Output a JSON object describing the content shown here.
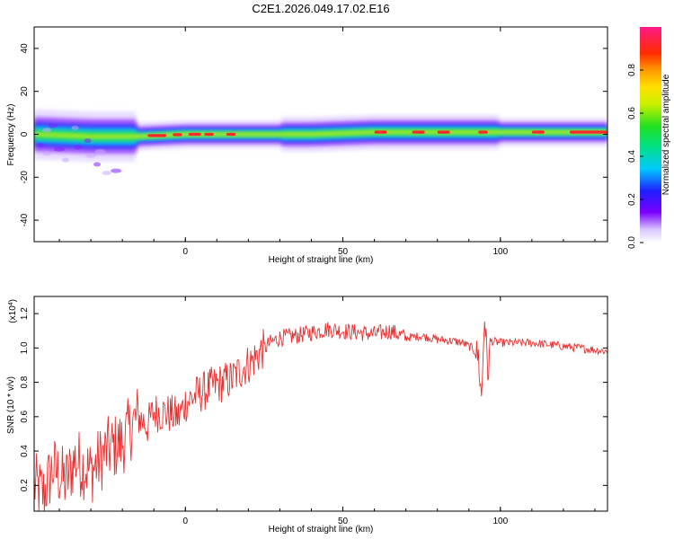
{
  "title": "C2E1.2026.049.17.02.E16",
  "colors": {
    "snr_line": "#e83030",
    "frame": "#000000"
  },
  "chart_data": [
    {
      "type": "heatmap",
      "xlabel": "Height of straight line (km)",
      "ylabel": "Frequency (Hz)",
      "xlim": [
        -48,
        134
      ],
      "ylim": [
        -50,
        50
      ],
      "xticks": [
        "0",
        "50",
        "100"
      ],
      "yticks": [
        "-40",
        "-20",
        "0",
        "20",
        "40"
      ],
      "xtick_values": [
        0,
        50,
        100
      ],
      "ytick_values": [
        -40,
        -20,
        0,
        20,
        40
      ],
      "colorbar": {
        "label": "Normalized spectral amplitude",
        "range": [
          0,
          1
        ],
        "ticks": [
          "0.0",
          "0.2",
          "0.4",
          "0.6",
          "0.8"
        ],
        "tick_values": [
          0,
          0.2,
          0.4,
          0.6,
          0.8
        ],
        "colormap": "rainbow (white-violet-blue-cyan-green-yellow-orange-red-magenta)"
      },
      "ridge": {
        "description_points_x": [
          -48,
          -30,
          -15,
          0,
          20,
          40,
          60,
          80,
          100,
          134
        ],
        "center_frequency_hz": [
          0,
          -1,
          -1,
          0,
          0,
          0,
          1,
          1,
          1,
          1
        ]
      }
    },
    {
      "type": "line",
      "xlabel": "Height of straight line (km)",
      "ylabel": "SNR (10 * v/v)",
      "y_multiplier": "(x10",
      "y_multiplier_exp": "4",
      "y_multiplier_close": ")",
      "xlim": [
        -48,
        134
      ],
      "ylim": [
        0.05,
        1.3
      ],
      "xticks": [
        "0",
        "50",
        "100"
      ],
      "yticks": [
        "0.2",
        "0.4",
        "0.6",
        "0.8",
        "1.0",
        "1.2"
      ],
      "xtick_values": [
        0,
        50,
        100
      ],
      "ytick_values": [
        0.2,
        0.4,
        0.6,
        0.8,
        1.0,
        1.2
      ],
      "series": [
        {
          "x": [
            -48,
            -45,
            -42,
            -38,
            -35,
            -30,
            -25,
            -20,
            -17,
            -15,
            -12,
            -10,
            -6,
            -2,
            0,
            3,
            6,
            9,
            12,
            15,
            18,
            21,
            24,
            27,
            30,
            35,
            40,
            45,
            50,
            55,
            60,
            65,
            70,
            75,
            80,
            85,
            88,
            91,
            93,
            94,
            95,
            96,
            97,
            100,
            105,
            110,
            115,
            120,
            125,
            130,
            134
          ],
          "y": [
            0.2,
            0.15,
            0.3,
            0.22,
            0.35,
            0.28,
            0.4,
            0.45,
            0.55,
            0.6,
            0.55,
            0.63,
            0.62,
            0.6,
            0.68,
            0.72,
            0.75,
            0.78,
            0.8,
            0.82,
            0.88,
            0.92,
            0.98,
            1.03,
            1.06,
            1.07,
            1.09,
            1.11,
            1.1,
            1.09,
            1.08,
            1.1,
            1.06,
            1.07,
            1.05,
            1.04,
            1.03,
            1.0,
            0.95,
            0.7,
            1.2,
            0.85,
            1.04,
            1.03,
            1.03,
            1.03,
            1.02,
            1.01,
            1.0,
            0.99,
            0.98
          ]
        }
      ]
    }
  ]
}
